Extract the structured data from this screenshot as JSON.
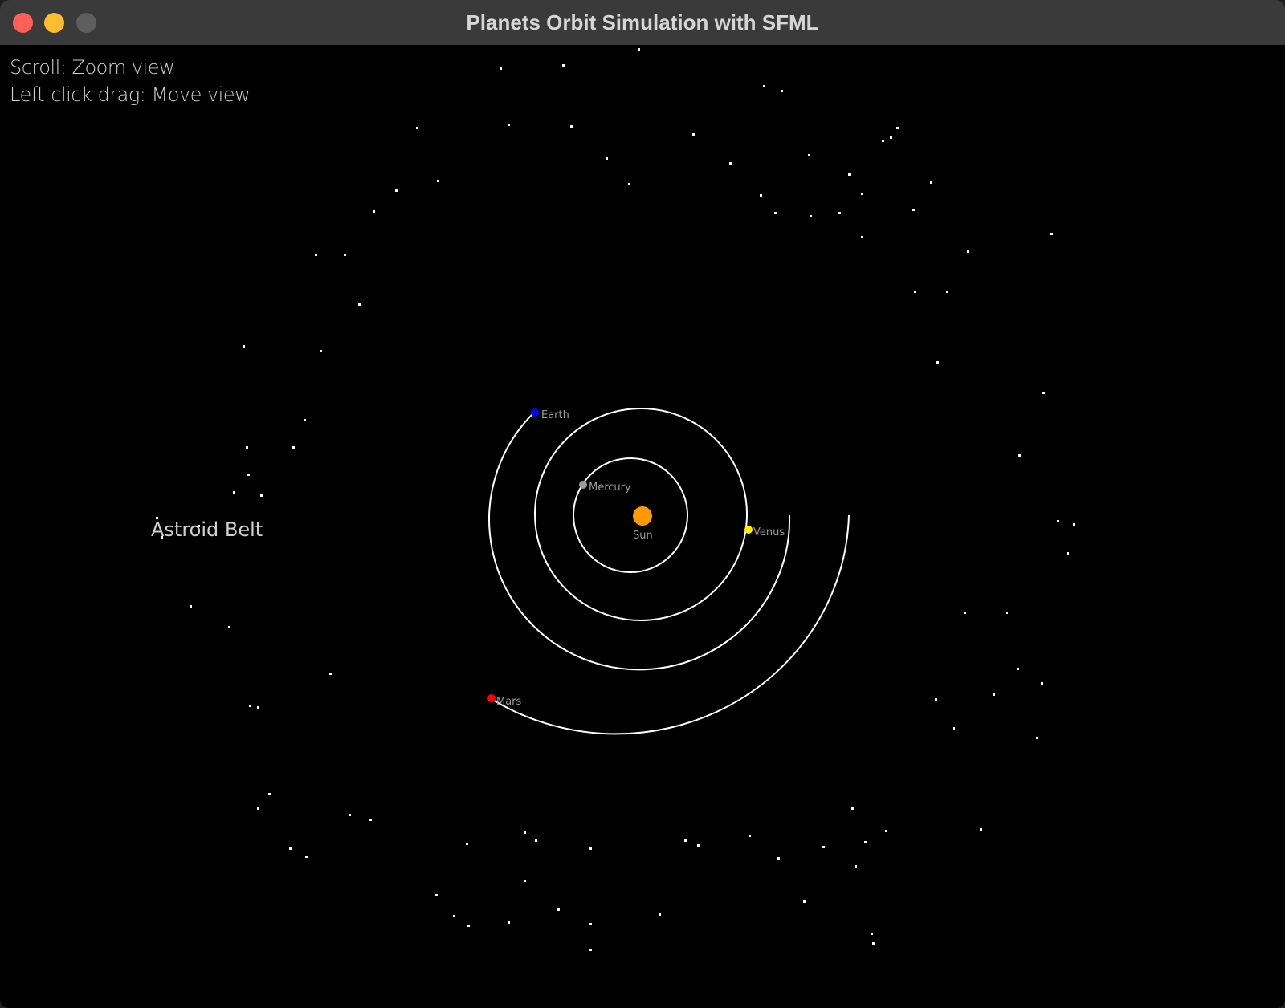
{
  "window": {
    "title": "Planets Orbit Simulation with SFML"
  },
  "hints": {
    "zoom": "Scroll: Zoom view",
    "move": "Left-click drag: Move view"
  },
  "belt": {
    "label": "Astroid Belt"
  },
  "colors": {
    "sun": "#ff9900",
    "mercury": "#9a9a9a",
    "venus": "#ffee00",
    "earth": "#0000ff",
    "mars": "#ff0000",
    "orbit": "#ffffff",
    "background": "#000000"
  },
  "bodies": {
    "sun": {
      "label": "Sun"
    },
    "mercury": {
      "label": "Mercury"
    },
    "venus": {
      "label": "Venus"
    },
    "earth": {
      "label": "Earth"
    },
    "mars": {
      "label": "Mars"
    }
  }
}
